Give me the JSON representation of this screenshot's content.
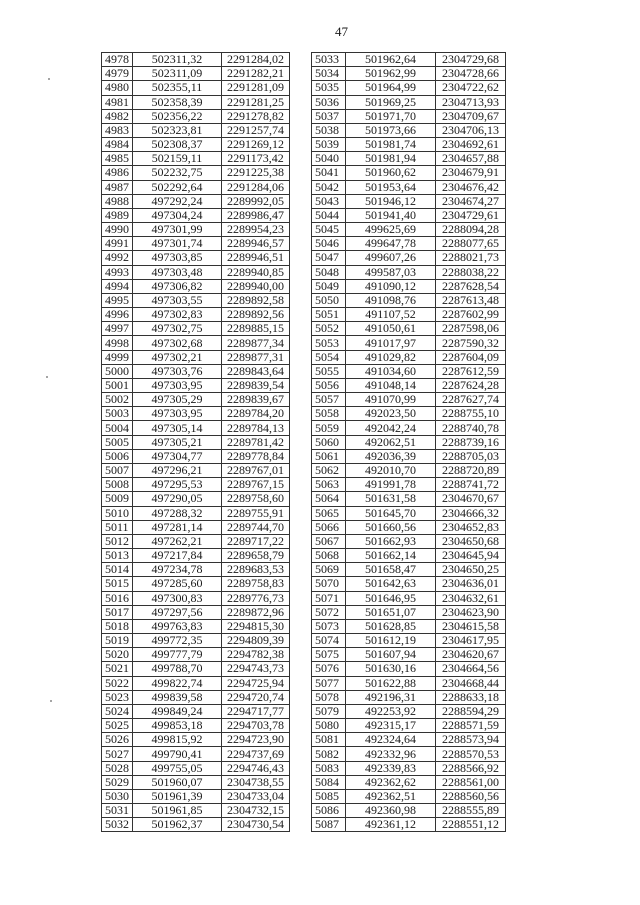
{
  "page_number": "47",
  "left_table": [
    [
      "4978",
      "502311,32",
      "2291284,02"
    ],
    [
      "4979",
      "502311,09",
      "2291282,21"
    ],
    [
      "4980",
      "502355,11",
      "2291281,09"
    ],
    [
      "4981",
      "502358,39",
      "2291281,25"
    ],
    [
      "4982",
      "502356,22",
      "2291278,82"
    ],
    [
      "4983",
      "502323,81",
      "2291257,74"
    ],
    [
      "4984",
      "502308,37",
      "2291269,12"
    ],
    [
      "4985",
      "502159,11",
      "2291173,42"
    ],
    [
      "4986",
      "502232,75",
      "2291225,38"
    ],
    [
      "4987",
      "502292,64",
      "2291284,06"
    ],
    [
      "4988",
      "497292,24",
      "2289992,05"
    ],
    [
      "4989",
      "497304,24",
      "2289986,47"
    ],
    [
      "4990",
      "497301,99",
      "2289954,23"
    ],
    [
      "4991",
      "497301,74",
      "2289946,57"
    ],
    [
      "4992",
      "497303,85",
      "2289946,51"
    ],
    [
      "4993",
      "497303,48",
      "2289940,85"
    ],
    [
      "4994",
      "497306,82",
      "2289940,00"
    ],
    [
      "4995",
      "497303,55",
      "2289892,58"
    ],
    [
      "4996",
      "497302,83",
      "2289892,56"
    ],
    [
      "4997",
      "497302,75",
      "2289885,15"
    ],
    [
      "4998",
      "497302,68",
      "2289877,34"
    ],
    [
      "4999",
      "497302,21",
      "2289877,31"
    ],
    [
      "5000",
      "497303,76",
      "2289843,64"
    ],
    [
      "5001",
      "497303,95",
      "2289839,54"
    ],
    [
      "5002",
      "497305,29",
      "2289839,67"
    ],
    [
      "5003",
      "497303,95",
      "2289784,20"
    ],
    [
      "5004",
      "497305,14",
      "2289784,13"
    ],
    [
      "5005",
      "497305,21",
      "2289781,42"
    ],
    [
      "5006",
      "497304,77",
      "2289778,84"
    ],
    [
      "5007",
      "497296,21",
      "2289767,01"
    ],
    [
      "5008",
      "497295,53",
      "2289767,15"
    ],
    [
      "5009",
      "497290,05",
      "2289758,60"
    ],
    [
      "5010",
      "497288,32",
      "2289755,91"
    ],
    [
      "5011",
      "497281,14",
      "2289744,70"
    ],
    [
      "5012",
      "497262,21",
      "2289717,22"
    ],
    [
      "5013",
      "497217,84",
      "2289658,79"
    ],
    [
      "5014",
      "497234,78",
      "2289683,53"
    ],
    [
      "5015",
      "497285,60",
      "2289758,83"
    ],
    [
      "5016",
      "497300,83",
      "2289776,73"
    ],
    [
      "5017",
      "497297,56",
      "2289872,96"
    ],
    [
      "5018",
      "499763,83",
      "2294815,30"
    ],
    [
      "5019",
      "499772,35",
      "2294809,39"
    ],
    [
      "5020",
      "499777,79",
      "2294782,38"
    ],
    [
      "5021",
      "499788,70",
      "2294743,73"
    ],
    [
      "5022",
      "499822,74",
      "2294725,94"
    ],
    [
      "5023",
      "499839,58",
      "2294720,74"
    ],
    [
      "5024",
      "499849,24",
      "2294717,77"
    ],
    [
      "5025",
      "499853,18",
      "2294703,78"
    ],
    [
      "5026",
      "499815,92",
      "2294723,90"
    ],
    [
      "5027",
      "499790,41",
      "2294737,69"
    ],
    [
      "5028",
      "499755,05",
      "2294746,43"
    ],
    [
      "5029",
      "501960,07",
      "2304738,55"
    ],
    [
      "5030",
      "501961,39",
      "2304733,04"
    ],
    [
      "5031",
      "501961,85",
      "2304732,15"
    ],
    [
      "5032",
      "501962,37",
      "2304730,54"
    ]
  ],
  "right_table": [
    [
      "5033",
      "501962,64",
      "2304729,68"
    ],
    [
      "5034",
      "501962,99",
      "2304728,66"
    ],
    [
      "5035",
      "501964,99",
      "2304722,62"
    ],
    [
      "5036",
      "501969,25",
      "2304713,93"
    ],
    [
      "5037",
      "501971,70",
      "2304709,67"
    ],
    [
      "5038",
      "501973,66",
      "2304706,13"
    ],
    [
      "5039",
      "501981,74",
      "2304692,61"
    ],
    [
      "5040",
      "501981,94",
      "2304657,88"
    ],
    [
      "5041",
      "501960,62",
      "2304679,91"
    ],
    [
      "5042",
      "501953,64",
      "2304676,42"
    ],
    [
      "5043",
      "501946,12",
      "2304674,27"
    ],
    [
      "5044",
      "501941,40",
      "2304729,61"
    ],
    [
      "5045",
      "499625,69",
      "2288094,28"
    ],
    [
      "5046",
      "499647,78",
      "2288077,65"
    ],
    [
      "5047",
      "499607,26",
      "2288021,73"
    ],
    [
      "5048",
      "499587,03",
      "2288038,22"
    ],
    [
      "5049",
      "491090,12",
      "2287628,54"
    ],
    [
      "5050",
      "491098,76",
      "2287613,48"
    ],
    [
      "5051",
      "491107,52",
      "2287602,99"
    ],
    [
      "5052",
      "491050,61",
      "2287598,06"
    ],
    [
      "5053",
      "491017,97",
      "2287590,32"
    ],
    [
      "5054",
      "491029,82",
      "2287604,09"
    ],
    [
      "5055",
      "491034,60",
      "2287612,59"
    ],
    [
      "5056",
      "491048,14",
      "2287624,28"
    ],
    [
      "5057",
      "491070,99",
      "2287627,74"
    ],
    [
      "5058",
      "492023,50",
      "2288755,10"
    ],
    [
      "5059",
      "492042,24",
      "2288740,78"
    ],
    [
      "5060",
      "492062,51",
      "2288739,16"
    ],
    [
      "5061",
      "492036,39",
      "2288705,03"
    ],
    [
      "5062",
      "492010,70",
      "2288720,89"
    ],
    [
      "5063",
      "491991,78",
      "2288741,72"
    ],
    [
      "5064",
      "501631,58",
      "2304670,67"
    ],
    [
      "5065",
      "501645,70",
      "2304666,32"
    ],
    [
      "5066",
      "501660,56",
      "2304652,83"
    ],
    [
      "5067",
      "501662,93",
      "2304650,68"
    ],
    [
      "5068",
      "501662,14",
      "2304645,94"
    ],
    [
      "5069",
      "501658,47",
      "2304650,25"
    ],
    [
      "5070",
      "501642,63",
      "2304636,01"
    ],
    [
      "5071",
      "501646,95",
      "2304632,61"
    ],
    [
      "5072",
      "501651,07",
      "2304623,90"
    ],
    [
      "5073",
      "501628,85",
      "2304615,58"
    ],
    [
      "5074",
      "501612,19",
      "2304617,95"
    ],
    [
      "5075",
      "501607,94",
      "2304620,67"
    ],
    [
      "5076",
      "501630,16",
      "2304664,56"
    ],
    [
      "5077",
      "501622,88",
      "2304668,44"
    ],
    [
      "5078",
      "492196,31",
      "2288633,18"
    ],
    [
      "5079",
      "492253,92",
      "2288594,29"
    ],
    [
      "5080",
      "492315,17",
      "2288571,59"
    ],
    [
      "5081",
      "492324,64",
      "2288573,94"
    ],
    [
      "5082",
      "492332,96",
      "2288570,53"
    ],
    [
      "5083",
      "492339,83",
      "2288566,92"
    ],
    [
      "5084",
      "492362,62",
      "2288561,00"
    ],
    [
      "5085",
      "492362,51",
      "2288560,56"
    ],
    [
      "5086",
      "492360,98",
      "2288555,89"
    ],
    [
      "5087",
      "492361,12",
      "2288551,12"
    ]
  ]
}
